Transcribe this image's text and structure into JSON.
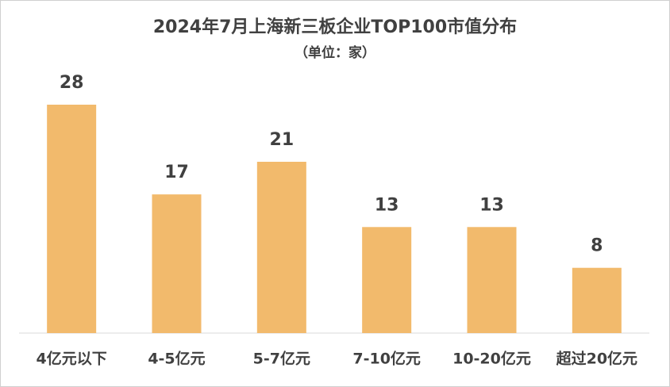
{
  "chart_data": {
    "type": "bar",
    "title": "2024年7月上海新三板企业TOP100市值分布",
    "subtitle": "（单位：家）",
    "categories": [
      "4亿元以下",
      "4-5亿元",
      "5-7亿元",
      "7-10亿元",
      "10-20亿元",
      "超过20亿元"
    ],
    "values": [
      28,
      17,
      21,
      13,
      13,
      8
    ],
    "color": "#f2ba6c"
  }
}
